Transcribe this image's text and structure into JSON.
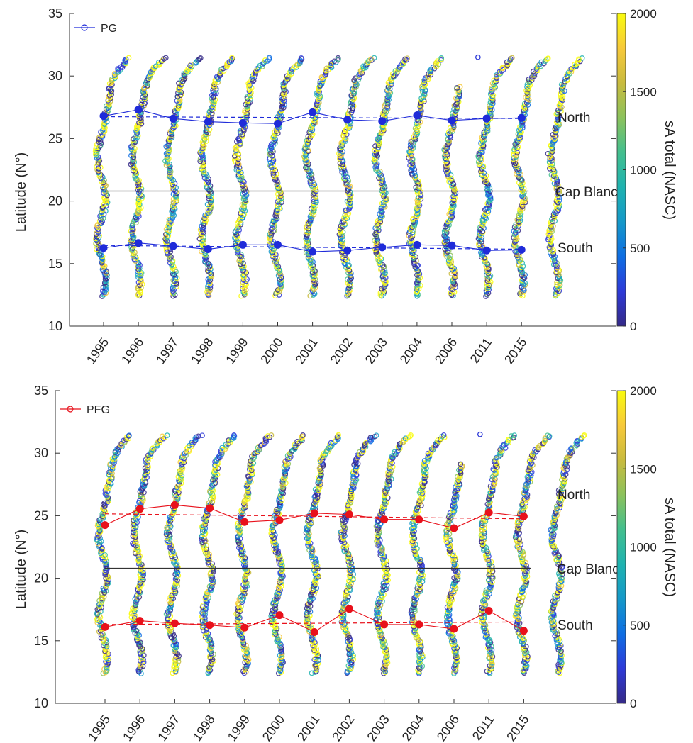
{
  "colors": {
    "pg": "#1f2bd9",
    "pfg": "#e8111b",
    "cap_blanc_line": "#333333",
    "axis": "#333333",
    "colormap": [
      "#352a87",
      "#2e3ad8",
      "#0f6ee3",
      "#1599c9",
      "#1fb3b0",
      "#43bf8e",
      "#8cc25c",
      "#c9bb3e",
      "#f7c93a",
      "#f9fb0e"
    ]
  },
  "chart_data": [
    {
      "type": "scatter",
      "panel": "top",
      "legend": {
        "label": "PG",
        "position": "top-left",
        "marker": "circle-line"
      },
      "ylabel": "Latitude (N°)",
      "ylim": [
        10,
        35
      ],
      "yticks": [
        "10",
        "15",
        "20",
        "25",
        "30",
        "35"
      ],
      "categories": [
        "1995",
        "1996",
        "1997",
        "1998",
        "1999",
        "2000",
        "2001",
        "2002",
        "2003",
        "2004",
        "2006",
        "2011",
        "2015"
      ],
      "region_labels": [
        "North",
        "Cap Blanc",
        "South"
      ],
      "cap_blanc_lat": 20.8,
      "colorbar": {
        "label": "sA total (NASC)",
        "range": [
          0,
          2000
        ],
        "ticks": [
          "0",
          "500",
          "1000",
          "1500",
          "2000"
        ]
      },
      "series": [
        {
          "name": "PG",
          "group": "North",
          "values": [
            26.8,
            27.3,
            26.6,
            26.35,
            26.25,
            26.2,
            27.1,
            26.5,
            26.4,
            26.85,
            26.45,
            26.6,
            26.65
          ],
          "trend": [
            26.75,
            26.6
          ]
        },
        {
          "name": "PG",
          "group": "South",
          "values": [
            16.25,
            16.65,
            16.4,
            16.15,
            16.5,
            16.5,
            15.95,
            16.05,
            16.3,
            16.5,
            16.45,
            16.05,
            16.1
          ],
          "trend": [
            16.45,
            16.15
          ]
        }
      ]
    },
    {
      "type": "scatter",
      "panel": "bottom",
      "legend": {
        "label": "PFG",
        "position": "top-left",
        "marker": "circle-line"
      },
      "ylabel": "Latitude (N°)",
      "ylim": [
        10,
        35
      ],
      "yticks": [
        "10",
        "15",
        "20",
        "25",
        "30",
        "35"
      ],
      "categories": [
        "1995",
        "1996",
        "1997",
        "1998",
        "1999",
        "2000",
        "2001",
        "2002",
        "2003",
        "2004",
        "2006",
        "2011",
        "2015"
      ],
      "region_labels": [
        "North",
        "Cap Blanc",
        "South"
      ],
      "cap_blanc_lat": 20.8,
      "colorbar": {
        "label": "sA total (NASC)",
        "range": [
          0,
          2000
        ],
        "ticks": [
          "0",
          "500",
          "1000",
          "1500",
          "2000"
        ]
      },
      "series": [
        {
          "name": "PFG",
          "group": "North",
          "values": [
            24.25,
            25.55,
            25.85,
            25.6,
            24.5,
            24.65,
            25.2,
            25.1,
            24.7,
            24.7,
            24.0,
            25.25,
            24.95
          ],
          "trend": [
            25.15,
            24.75
          ]
        },
        {
          "name": "PFG",
          "group": "South",
          "values": [
            16.1,
            16.6,
            16.4,
            16.25,
            16.05,
            17.05,
            15.7,
            17.55,
            16.3,
            16.3,
            15.95,
            17.4,
            15.8
          ],
          "trend": [
            16.3,
            16.5
          ]
        }
      ]
    }
  ]
}
